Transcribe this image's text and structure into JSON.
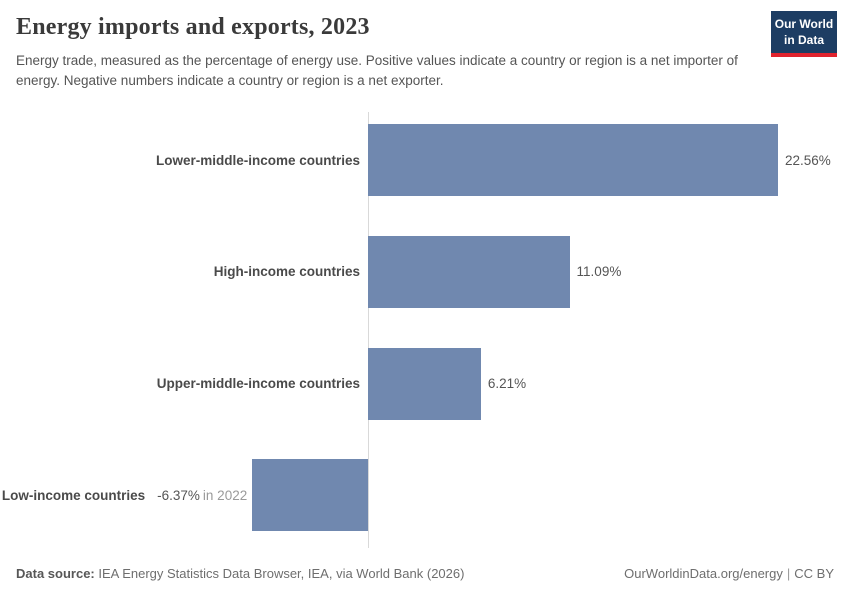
{
  "header": {
    "title": "Energy imports and exports, 2023",
    "subtitle": "Energy trade, measured as the percentage of energy use. Positive values indicate a country or region is a net importer of energy. Negative numbers indicate a country or region is a net exporter.",
    "logo": {
      "line1": "Our World",
      "line2": "in Data",
      "bg_color": "#1d3d63",
      "accent_color": "#e0232e"
    }
  },
  "chart_data": {
    "type": "bar",
    "orientation": "horizontal",
    "title": "Energy imports and exports, 2023",
    "xlabel": "",
    "ylabel": "",
    "unit": "%",
    "xlim": [
      -6.37,
      22.56
    ],
    "grid": false,
    "legend": "none",
    "categories": [
      "Lower-middle-income countries",
      "High-income countries",
      "Upper-middle-income countries",
      "Low-income countries"
    ],
    "values": [
      22.56,
      11.09,
      6.21,
      -6.37
    ],
    "value_labels": [
      "22.56%",
      "11.09%",
      "6.21%",
      "-6.37%"
    ],
    "value_notes": [
      "",
      "",
      "",
      "in 2022"
    ],
    "bar_color": "#7088af",
    "axis_color": "#d9d9d9",
    "label_color": "#4a4a4a",
    "value_color": "#555555",
    "note_color": "#9a9a9a"
  },
  "footer": {
    "source_label": "Data source:",
    "source_text": " IEA Energy Statistics Data Browser, IEA, via World Bank (2026)",
    "link_text": "OurWorldinData.org/energy",
    "separator": "|",
    "license_text": "CC BY"
  }
}
